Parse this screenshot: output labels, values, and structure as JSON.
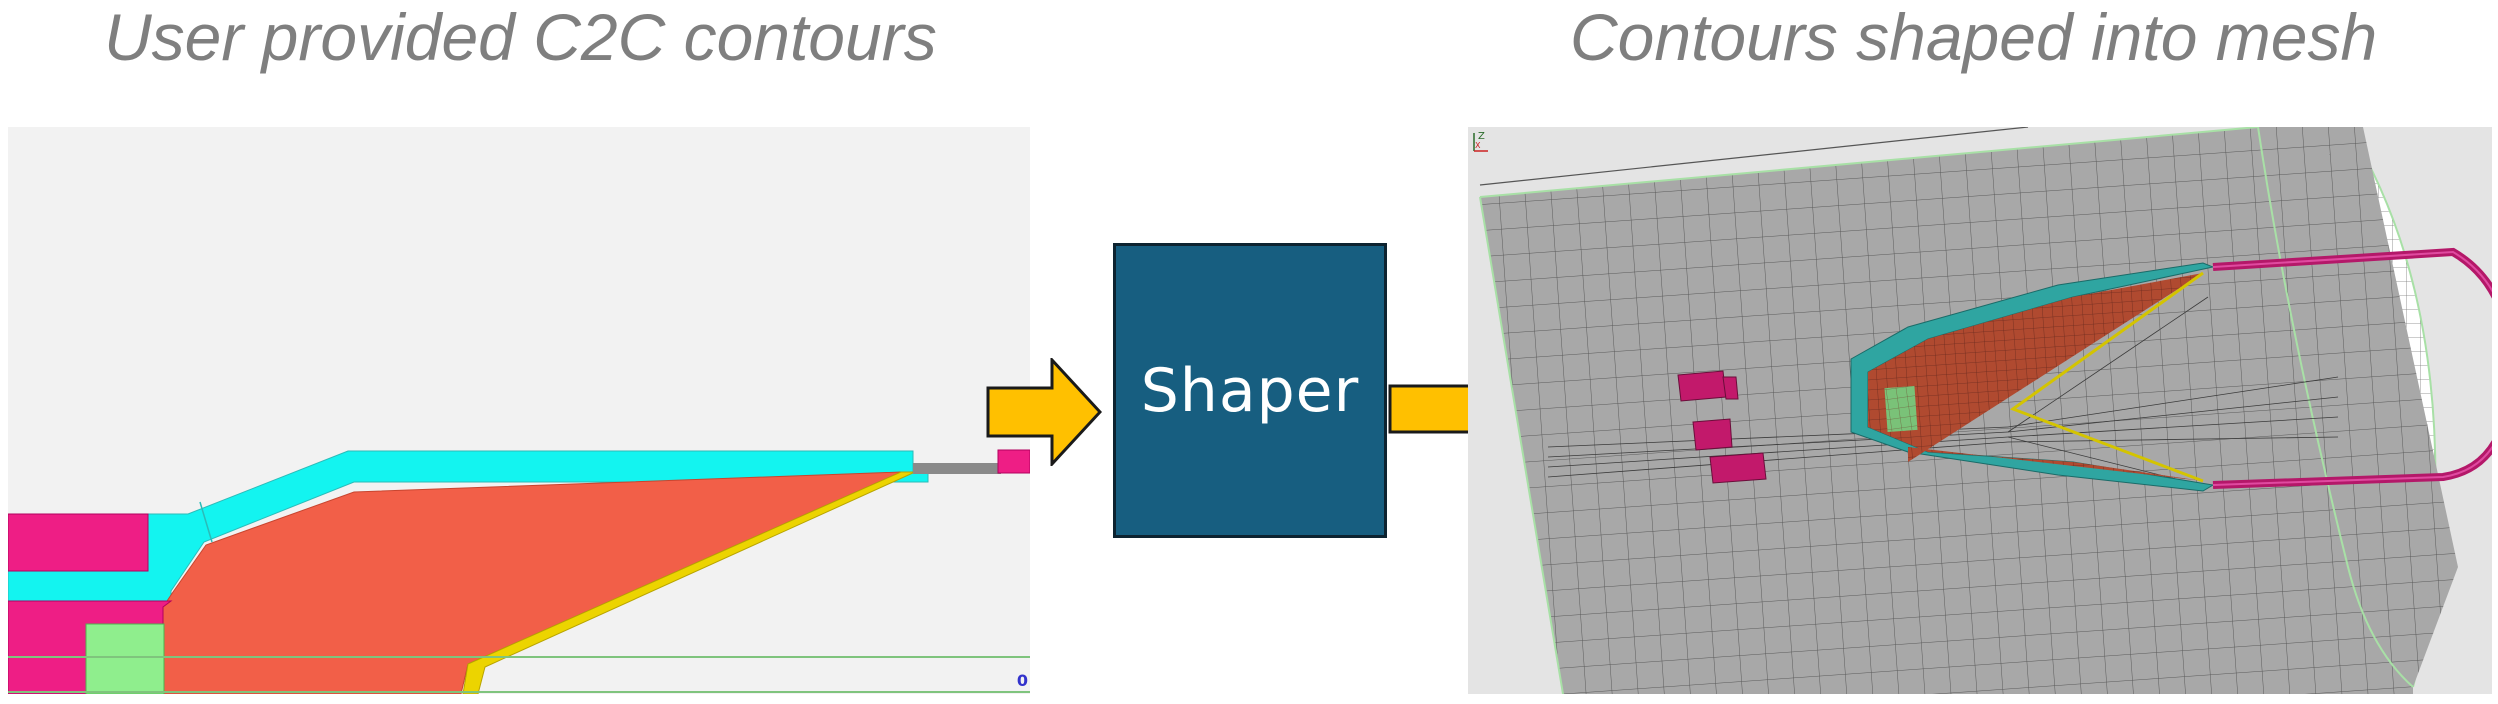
{
  "left_heading": "User provided C2C contours",
  "right_heading": "Contours shaped into mesh",
  "process": {
    "label": "Shaper"
  },
  "left_view": {
    "axis_readout": "0"
  },
  "right_view": {
    "triad_z": "Z",
    "triad_x": "X"
  },
  "colors": {
    "heading_text": "#7f7f7f",
    "region_magenta": "#ee1e85",
    "region_cyan": "#13f4f0",
    "region_orange": "#f25f48",
    "region_green": "#8fee8d",
    "region_yellow": "#ecd400",
    "liner": "#b41869",
    "mesh_grey": "#a8a8a8",
    "process_box": "#175e80",
    "arrow_fill": "#ffc000"
  },
  "icons": [
    "arrow-right-icon",
    "axis-triad-icon"
  ]
}
